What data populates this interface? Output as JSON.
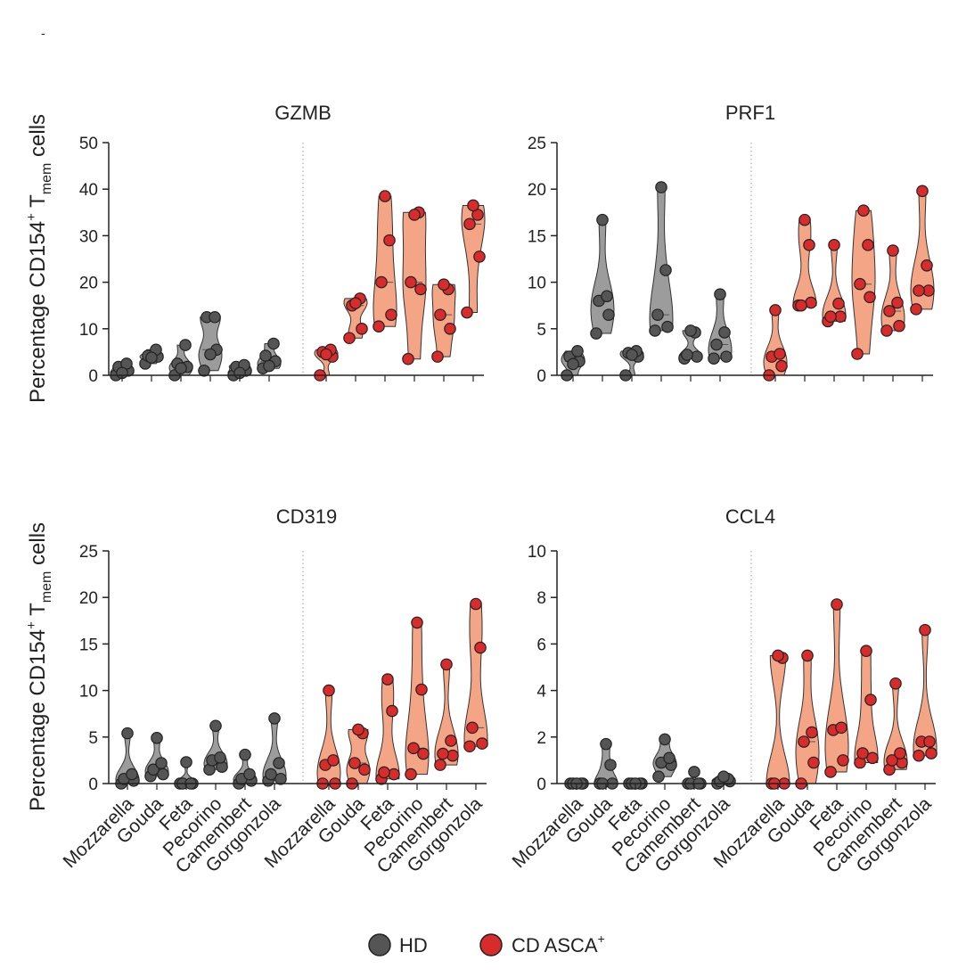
{
  "figure_mark": "-",
  "colors": {
    "hd_dot": "#555555",
    "hd_violin": "#9c9c9c",
    "cd_dot": "#d82b2b",
    "cd_violin": "#f4a585",
    "axis": "#222222"
  },
  "legend": {
    "hd_label": "HD",
    "cd_label": "CD ASCA",
    "cd_sup": "+"
  },
  "ylabel": {
    "prefix": "Percentage CD154",
    "sup": "+",
    "t": " T",
    "sub": "mem",
    "suffix": " cells"
  },
  "chart_data": [
    {
      "type": "violin",
      "title": "GZMB",
      "ylim": [
        0,
        50
      ],
      "yticks": [
        "0",
        "10",
        "20",
        "30",
        "40",
        "50"
      ],
      "categories": [
        "Mozzarella",
        "Gouda",
        "Feta",
        "Pecorino",
        "Camembert",
        "Gorgonzola"
      ],
      "series": [
        {
          "name": "HD",
          "values": [
            [
              0,
              1,
              1.8,
              2.5,
              0.5
            ],
            [
              2.5,
              4,
              4.2,
              5.5,
              3.8
            ],
            [
              0,
              1.8,
              2.5,
              6.5,
              1.5
            ],
            [
              1,
              5.5,
              12.5,
              12.5,
              4.5
            ],
            [
              0,
              1,
              1.8,
              2.2,
              0.5
            ],
            [
              1.5,
              3,
              4.2,
              6.8,
              2
            ]
          ]
        },
        {
          "name": "CD ASCA+",
          "values": [
            [
              0,
              4,
              5,
              5.5,
              4.5
            ],
            [
              8,
              10,
              15,
              16.5,
              15.5
            ],
            [
              10.5,
              13,
              20,
              29,
              38.5
            ],
            [
              3.5,
              18.5,
              20,
              35,
              34.5
            ],
            [
              4,
              10,
              13,
              18.5,
              19.5
            ],
            [
              13.5,
              25.5,
              32.5,
              34.5,
              36.5
            ]
          ]
        }
      ]
    },
    {
      "type": "violin",
      "title": "PRF1",
      "ylim": [
        0,
        25
      ],
      "yticks": [
        "0",
        "5",
        "10",
        "15",
        "20",
        "25"
      ],
      "categories": [
        "Mozzarella",
        "Gouda",
        "Feta",
        "Pecorino",
        "Camembert",
        "Gorgonzola"
      ],
      "series": [
        {
          "name": "HD",
          "values": [
            [
              0,
              1.5,
              2,
              2.6,
              1.2
            ],
            [
              4.5,
              6.5,
              8,
              8.5,
              16.7
            ],
            [
              0,
              2,
              2.4,
              2.6,
              2.2
            ],
            [
              4.8,
              5.2,
              6.5,
              11.3,
              20.2
            ],
            [
              1.8,
              2,
              2.2,
              4.6,
              4.8
            ],
            [
              1.8,
              2,
              3.3,
              4.6,
              8.7
            ]
          ]
        },
        {
          "name": "CD ASCA+",
          "values": [
            [
              0,
              1,
              2,
              2.3,
              7
            ],
            [
              7.5,
              7.8,
              7.5,
              14,
              16.7
            ],
            [
              5.8,
              6.3,
              6.3,
              7.7,
              14
            ],
            [
              2.3,
              8.4,
              9.8,
              14,
              17.7
            ],
            [
              4.8,
              5.3,
              6.9,
              7.8,
              13.4
            ],
            [
              7.1,
              9.1,
              9.1,
              11.8,
              19.8
            ]
          ]
        }
      ]
    },
    {
      "type": "violin",
      "title": "CD319",
      "ylim": [
        0,
        25
      ],
      "yticks": [
        "0",
        "5",
        "10",
        "15",
        "20",
        "25"
      ],
      "categories": [
        "Mozzarella",
        "Gouda",
        "Feta",
        "Pecorino",
        "Camembert",
        "Gorgonzola"
      ],
      "series": [
        {
          "name": "HD",
          "values": [
            [
              0,
              0.3,
              0.5,
              1,
              5.4
            ],
            [
              0.8,
              1,
              1.5,
              2.2,
              4.9
            ],
            [
              0,
              0,
              0,
              0,
              2.3
            ],
            [
              1.5,
              1.8,
              2.5,
              2.8,
              6.2
            ],
            [
              0,
              0.3,
              0.5,
              1,
              3.1
            ],
            [
              0.3,
              0.5,
              1,
              2.2,
              7
            ]
          ]
        },
        {
          "name": "CD ASCA+",
          "values": [
            [
              0,
              0,
              2,
              2.5,
              10
            ],
            [
              0,
              1.5,
              2.2,
              5.4,
              5.8
            ],
            [
              0.5,
              1,
              1.2,
              7.8,
              11.2
            ],
            [
              1,
              3.2,
              3.8,
              10.1,
              17.3
            ],
            [
              2,
              3,
              3.2,
              4.6,
              12.8
            ],
            [
              4,
              4.3,
              6,
              14.6,
              19.3
            ]
          ]
        }
      ]
    },
    {
      "type": "violin",
      "title": "CCL4",
      "ylim": [
        0,
        10
      ],
      "yticks": [
        "0",
        "2",
        "4",
        "6",
        "8",
        "10"
      ],
      "categories": [
        "Mozzarella",
        "Gouda",
        "Feta",
        "Pecorino",
        "Camembert",
        "Gorgonzola"
      ],
      "series": [
        {
          "name": "HD",
          "values": [
            [
              0,
              0,
              0,
              0,
              0
            ],
            [
              0,
              0,
              0,
              0.8,
              1.7
            ],
            [
              0,
              0,
              0,
              0,
              0
            ],
            [
              0.3,
              0.8,
              0.9,
              1.1,
              1.9
            ],
            [
              0,
              0,
              0,
              0,
              0.5
            ],
            [
              0,
              0.1,
              0.1,
              0.2,
              0.3
            ]
          ]
        },
        {
          "name": "CD ASCA+",
          "values": [
            [
              0,
              0,
              0,
              5.4,
              5.5
            ],
            [
              0,
              0.9,
              1.8,
              2.2,
              5.5
            ],
            [
              0.5,
              1,
              2.3,
              2.4,
              7.7
            ],
            [
              0.9,
              1.1,
              1.3,
              3.6,
              5.7
            ],
            [
              0.6,
              0.9,
              1,
              1.3,
              4.3
            ],
            [
              1.2,
              1.3,
              1.8,
              1.8,
              6.6
            ]
          ]
        }
      ]
    }
  ]
}
